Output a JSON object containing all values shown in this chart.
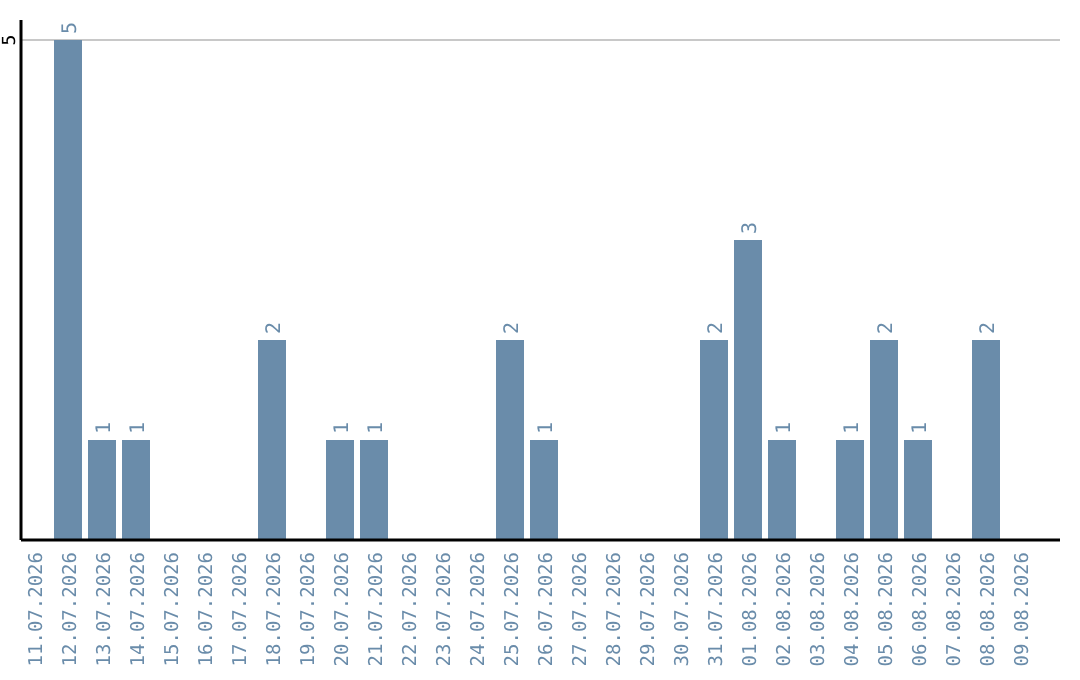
{
  "chart_data": {
    "type": "bar",
    "categories": [
      "11.07.2026",
      "12.07.2026",
      "13.07.2026",
      "14.07.2026",
      "15.07.2026",
      "16.07.2026",
      "17.07.2026",
      "18.07.2026",
      "19.07.2026",
      "20.07.2026",
      "21.07.2026",
      "22.07.2026",
      "23.07.2026",
      "24.07.2026",
      "25.07.2026",
      "26.07.2026",
      "27.07.2026",
      "28.07.2026",
      "29.07.2026",
      "30.07.2026",
      "31.07.2026",
      "01.08.2026",
      "02.08.2026",
      "03.08.2026",
      "04.08.2026",
      "05.08.2026",
      "06.08.2026",
      "07.08.2026",
      "08.08.2026",
      "09.08.2026"
    ],
    "values": [
      0,
      5,
      1,
      1,
      0,
      0,
      0,
      2,
      0,
      1,
      1,
      0,
      0,
      0,
      2,
      1,
      0,
      0,
      0,
      0,
      2,
      3,
      1,
      0,
      1,
      2,
      1,
      0,
      2,
      0
    ],
    "value_labels": [
      null,
      "5",
      "1",
      "1",
      null,
      null,
      null,
      "2",
      null,
      "1",
      "1",
      null,
      null,
      null,
      "2",
      "1",
      null,
      null,
      null,
      null,
      "2",
      "3",
      "1",
      null,
      "1",
      "2",
      "1",
      null,
      "2",
      null
    ],
    "color": "#6a8caa",
    "ylim": [
      0,
      5.2
    ],
    "yticks": [
      5
    ],
    "grid": "y"
  }
}
